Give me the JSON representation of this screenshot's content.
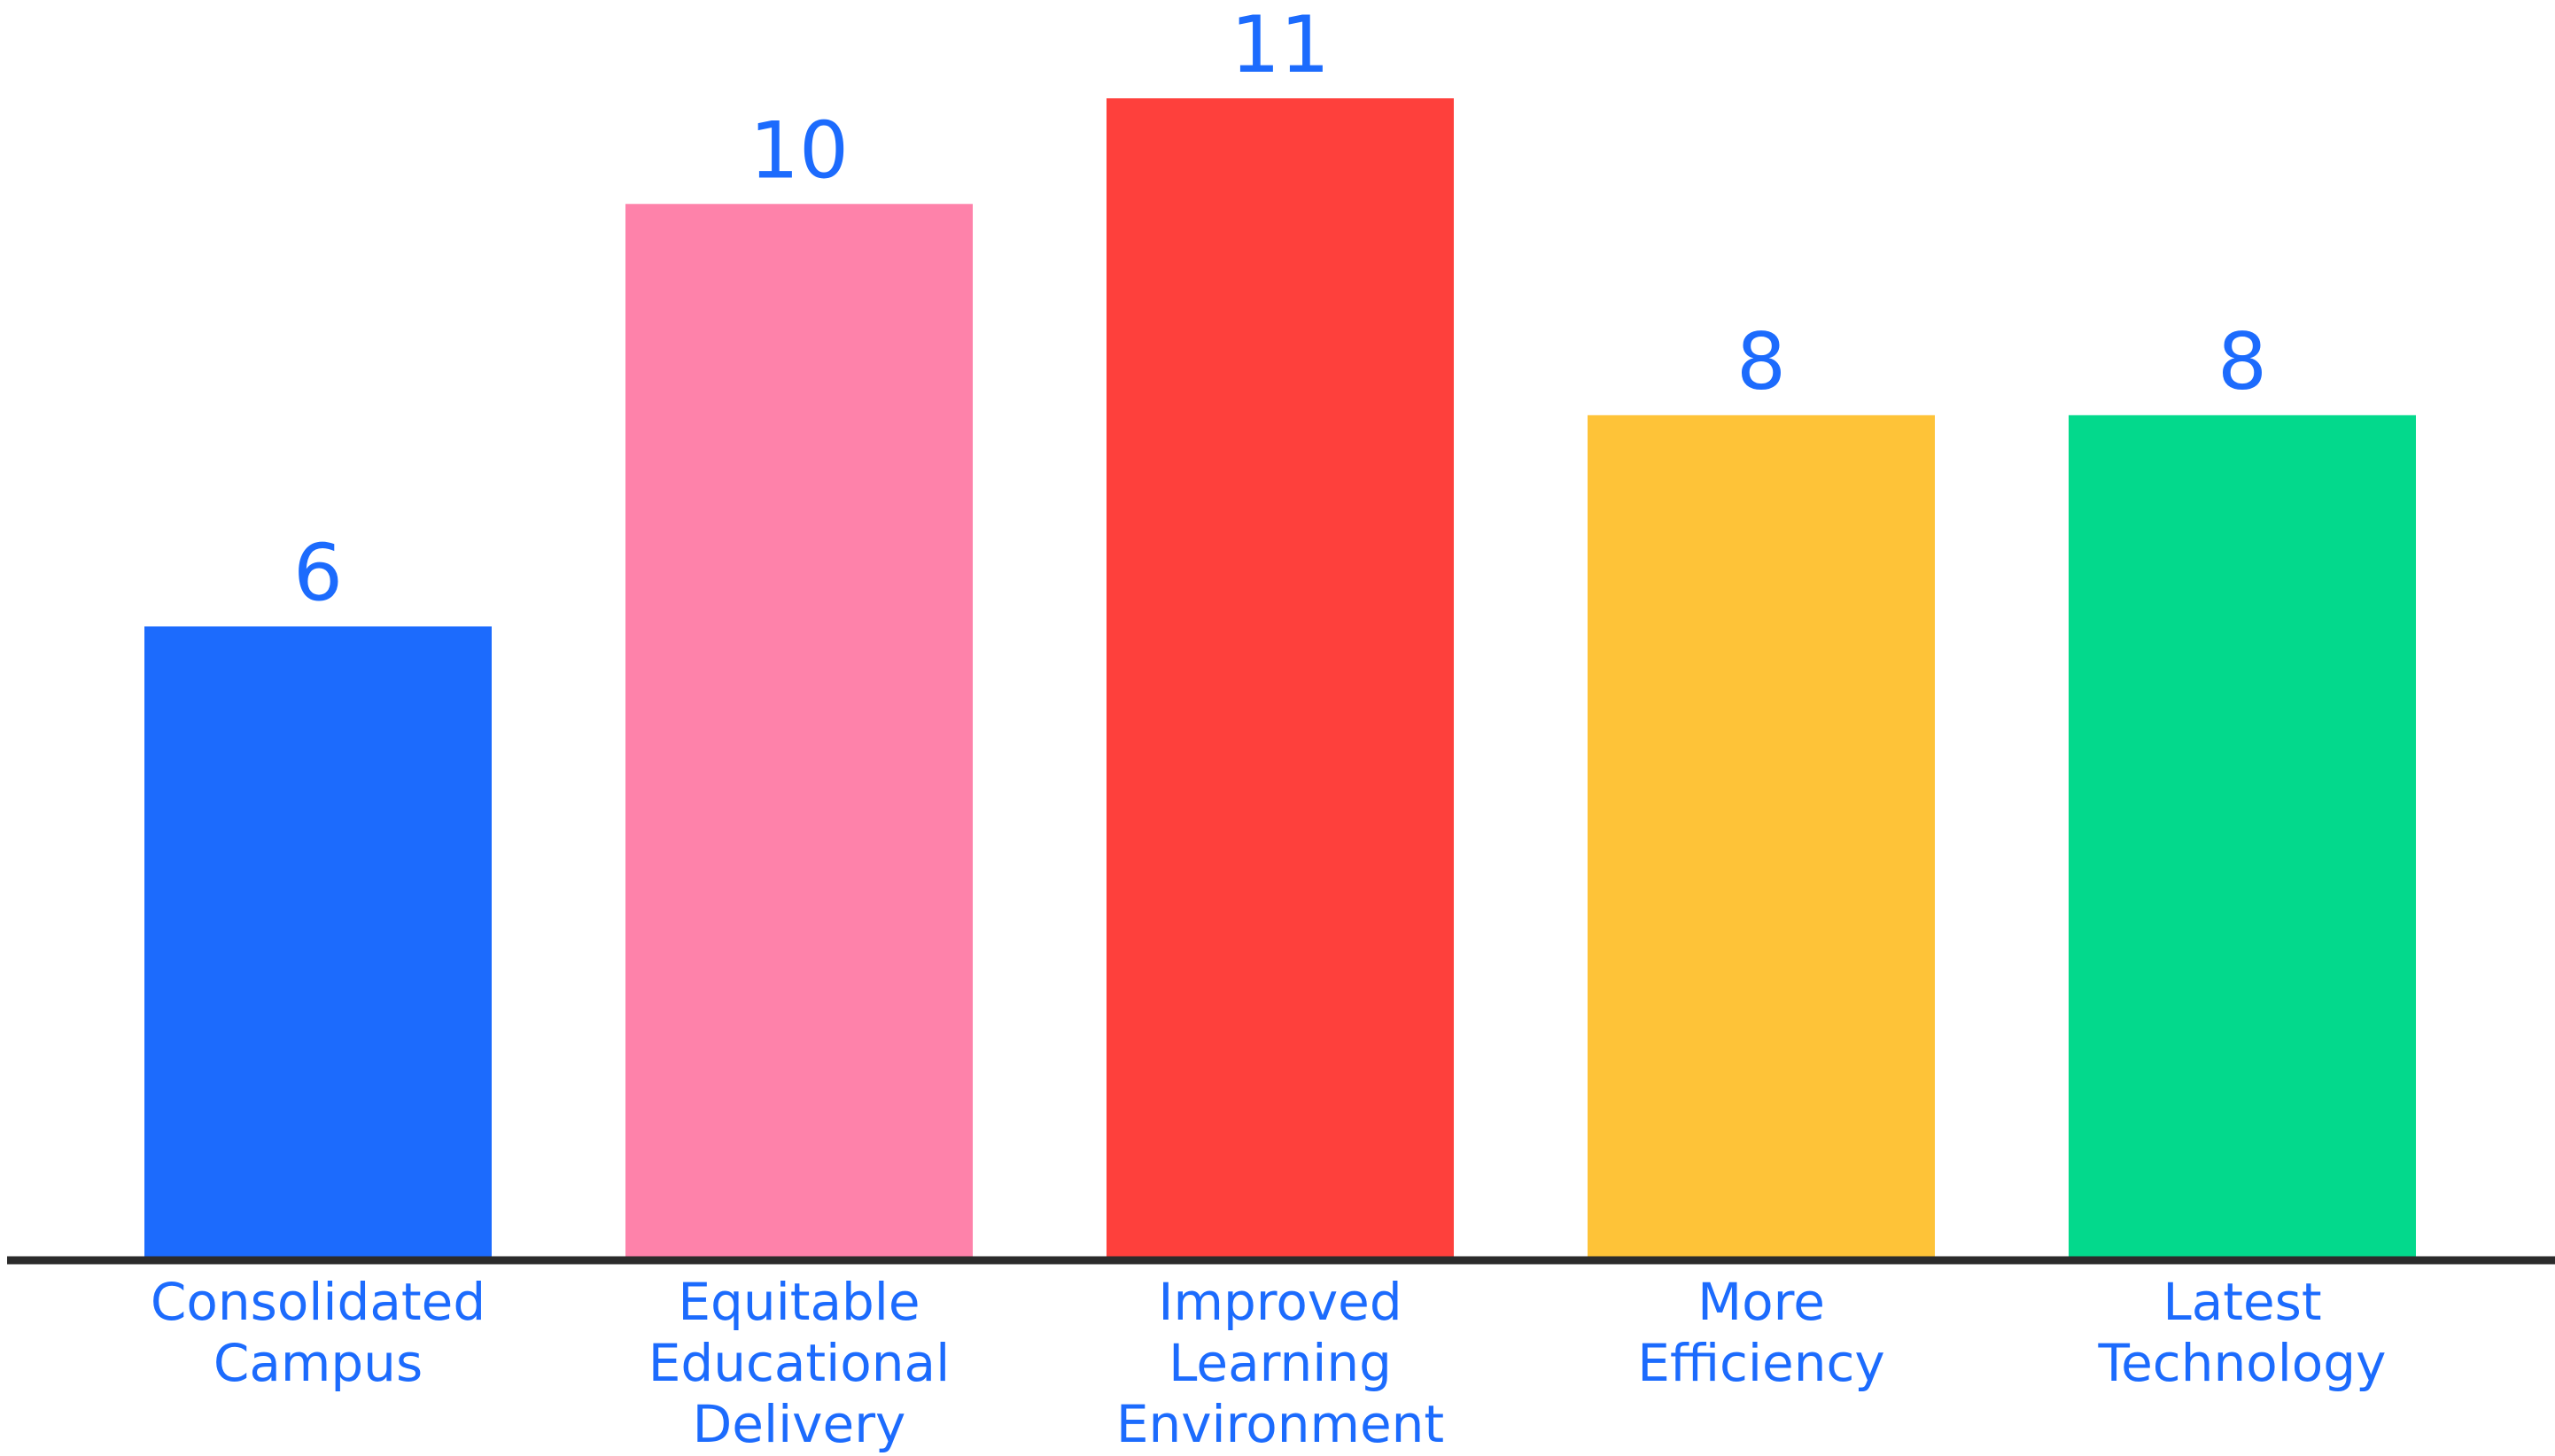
{
  "chart_data": {
    "type": "bar",
    "categories": [
      [
        "Consolidated",
        "Campus"
      ],
      [
        "Equitable",
        "Educational",
        "Delivery"
      ],
      [
        "Improved",
        "Learning",
        "Environment"
      ],
      [
        "More",
        "Efficiency"
      ],
      [
        "Latest",
        "Technology"
      ]
    ],
    "values": [
      6,
      10,
      11,
      8,
      8
    ],
    "value_labels": [
      "6",
      "10",
      "11",
      "8",
      "8"
    ],
    "bar_colors": [
      "#1c6bfd",
      "#fe82aa",
      "#fe403c",
      "#fec338",
      "#03d98c"
    ],
    "label_color": "#1c6bfd",
    "axis_color": "#2b2b2b",
    "ylim": [
      0,
      11
    ],
    "grid": false,
    "legend": "none",
    "title": "",
    "xlabel": "",
    "ylabel": ""
  }
}
